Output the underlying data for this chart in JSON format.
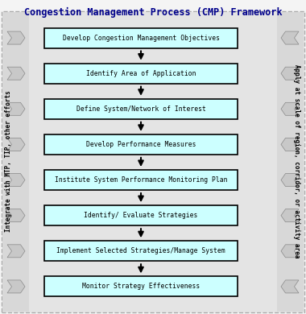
{
  "title": "Congestion Management Process (CMP) Framework",
  "title_color": "#00008B",
  "title_fontsize": 8.5,
  "box_fill_color": "#CCFFFF",
  "box_edge_color": "#000000",
  "arrow_color": "#000000",
  "side_arrow_fill": "#C8C8C8",
  "side_arrow_edge": "#888888",
  "outer_bg": "#E0E0E0",
  "inner_bg": "#D8D8D8",
  "steps": [
    "Develop Congestion Management Objectives",
    "Identify Area of Application",
    "Define System/Network of Interest",
    "Develop Performance Measures",
    "Institute System Performance Monitoring Plan",
    "Identify/ Evaluate Strategies",
    "Implement Selected Strategies/Manage System",
    "Monitor Strategy Effectiveness"
  ],
  "left_label": "Integrate with MTP, TIP, other efforts",
  "right_label": "Apply at scale of region, corridor, or activity area",
  "fig_width": 3.8,
  "fig_height": 3.9,
  "dpi": 100
}
